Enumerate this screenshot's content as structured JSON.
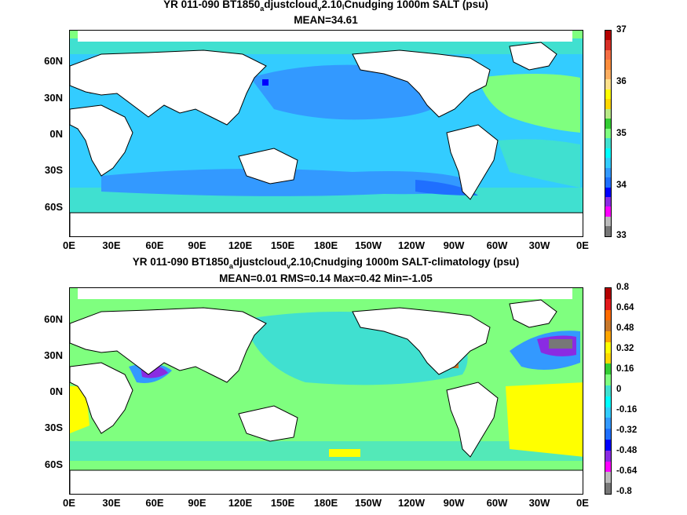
{
  "top": {
    "title": {
      "prefix": "YR 011-090 BT1850",
      "sub1": "a",
      "mid1": "djustcloud",
      "sub2": "v",
      "mid2": "2.10",
      "sub3": "l",
      "suffix": "Cnudging 1000m SALT (psu)"
    },
    "stats": "MEAN=34.61",
    "colorbar_ticks": [
      "37",
      "36",
      "35",
      "34",
      "33"
    ],
    "colorbar_colors": [
      "#b30000",
      "#d73027",
      "#f46d43",
      "#fd8d3c",
      "#fdae61",
      "#fee08b",
      "#ffff00",
      "#ffd700",
      "#b8e986",
      "#33cc33",
      "#7fff7f",
      "#40e0d0",
      "#00ffff",
      "#33ccff",
      "#3399ff",
      "#1f6fff",
      "#0000ff",
      "#8a2be2",
      "#ff00ff",
      "#bbbbbb",
      "#777777"
    ]
  },
  "bottom": {
    "title": {
      "prefix": "YR 011-090 BT1850",
      "sub1": "a",
      "mid1": "djustcloud",
      "sub2": "v",
      "mid2": "2.10",
      "sub3": "l",
      "suffix": "Cnudging 1000m SALT-climatology (psu)"
    },
    "stats": "MEAN=0.01   RMS=0.14   Max=0.42   Min=-1.05",
    "colorbar_ticks": [
      "0.8",
      "0.64",
      "0.48",
      "0.32",
      "0.16",
      "0",
      "-0.16",
      "-0.32",
      "-0.48",
      "-0.64",
      "-0.8"
    ],
    "colorbar_colors": [
      "#b30000",
      "#e31a1c",
      "#ff6a00",
      "#c8782a",
      "#ffa500",
      "#ffff00",
      "#ffd700",
      "#33cc33",
      "#7fff7f",
      "#40e0d0",
      "#00ffff",
      "#33ccff",
      "#3399ff",
      "#1f6fff",
      "#0000ff",
      "#8a2be2",
      "#ff00ff",
      "#bbbbbb",
      "#777777"
    ]
  },
  "y_ticks": [
    "60N",
    "30N",
    "0N",
    "30S",
    "60S"
  ],
  "x_ticks": [
    "0E",
    "30E",
    "60E",
    "90E",
    "120E",
    "150E",
    "180E",
    "150W",
    "120W",
    "90W",
    "60W",
    "30W",
    "0E"
  ]
}
